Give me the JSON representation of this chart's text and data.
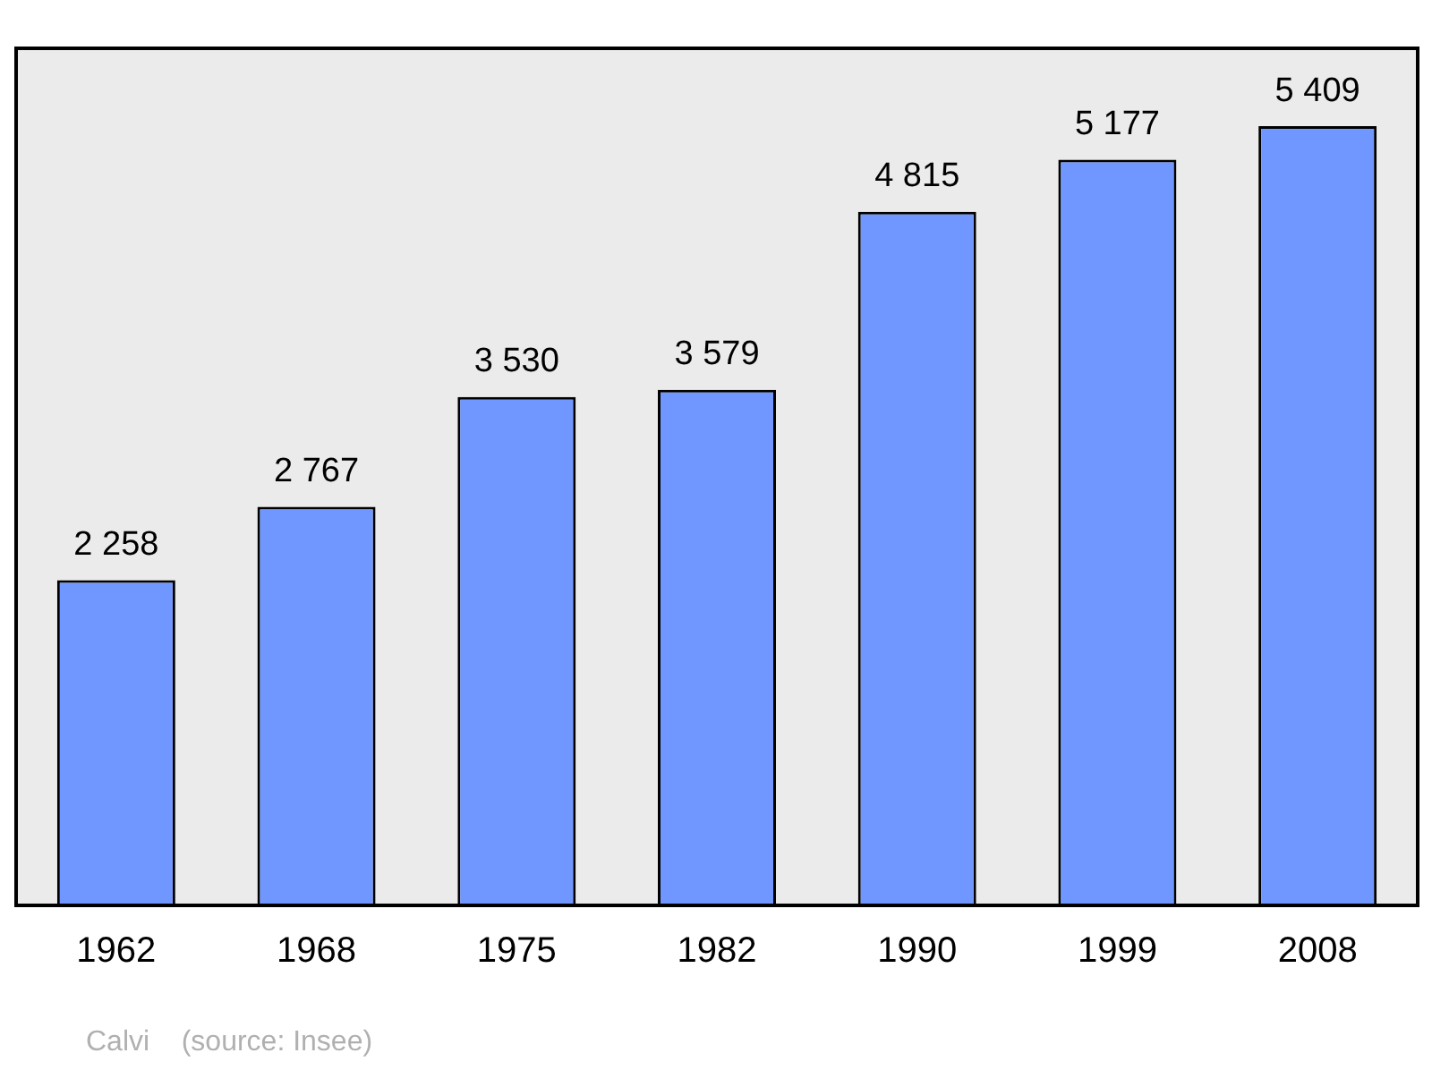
{
  "chart_data": {
    "type": "bar",
    "categories": [
      "1962",
      "1968",
      "1975",
      "1982",
      "1990",
      "1999",
      "2008"
    ],
    "values": [
      2258,
      2767,
      3530,
      3579,
      4815,
      5177,
      5409
    ],
    "value_labels": [
      "2 258",
      "2 767",
      "3 530",
      "3 579",
      "4 815",
      "5 177",
      "5 409"
    ],
    "color": "#7097ff",
    "grid": false,
    "legend": false,
    "tick_labels": "x",
    "annotations": [
      "Calvi    (source: Insee)"
    ]
  }
}
